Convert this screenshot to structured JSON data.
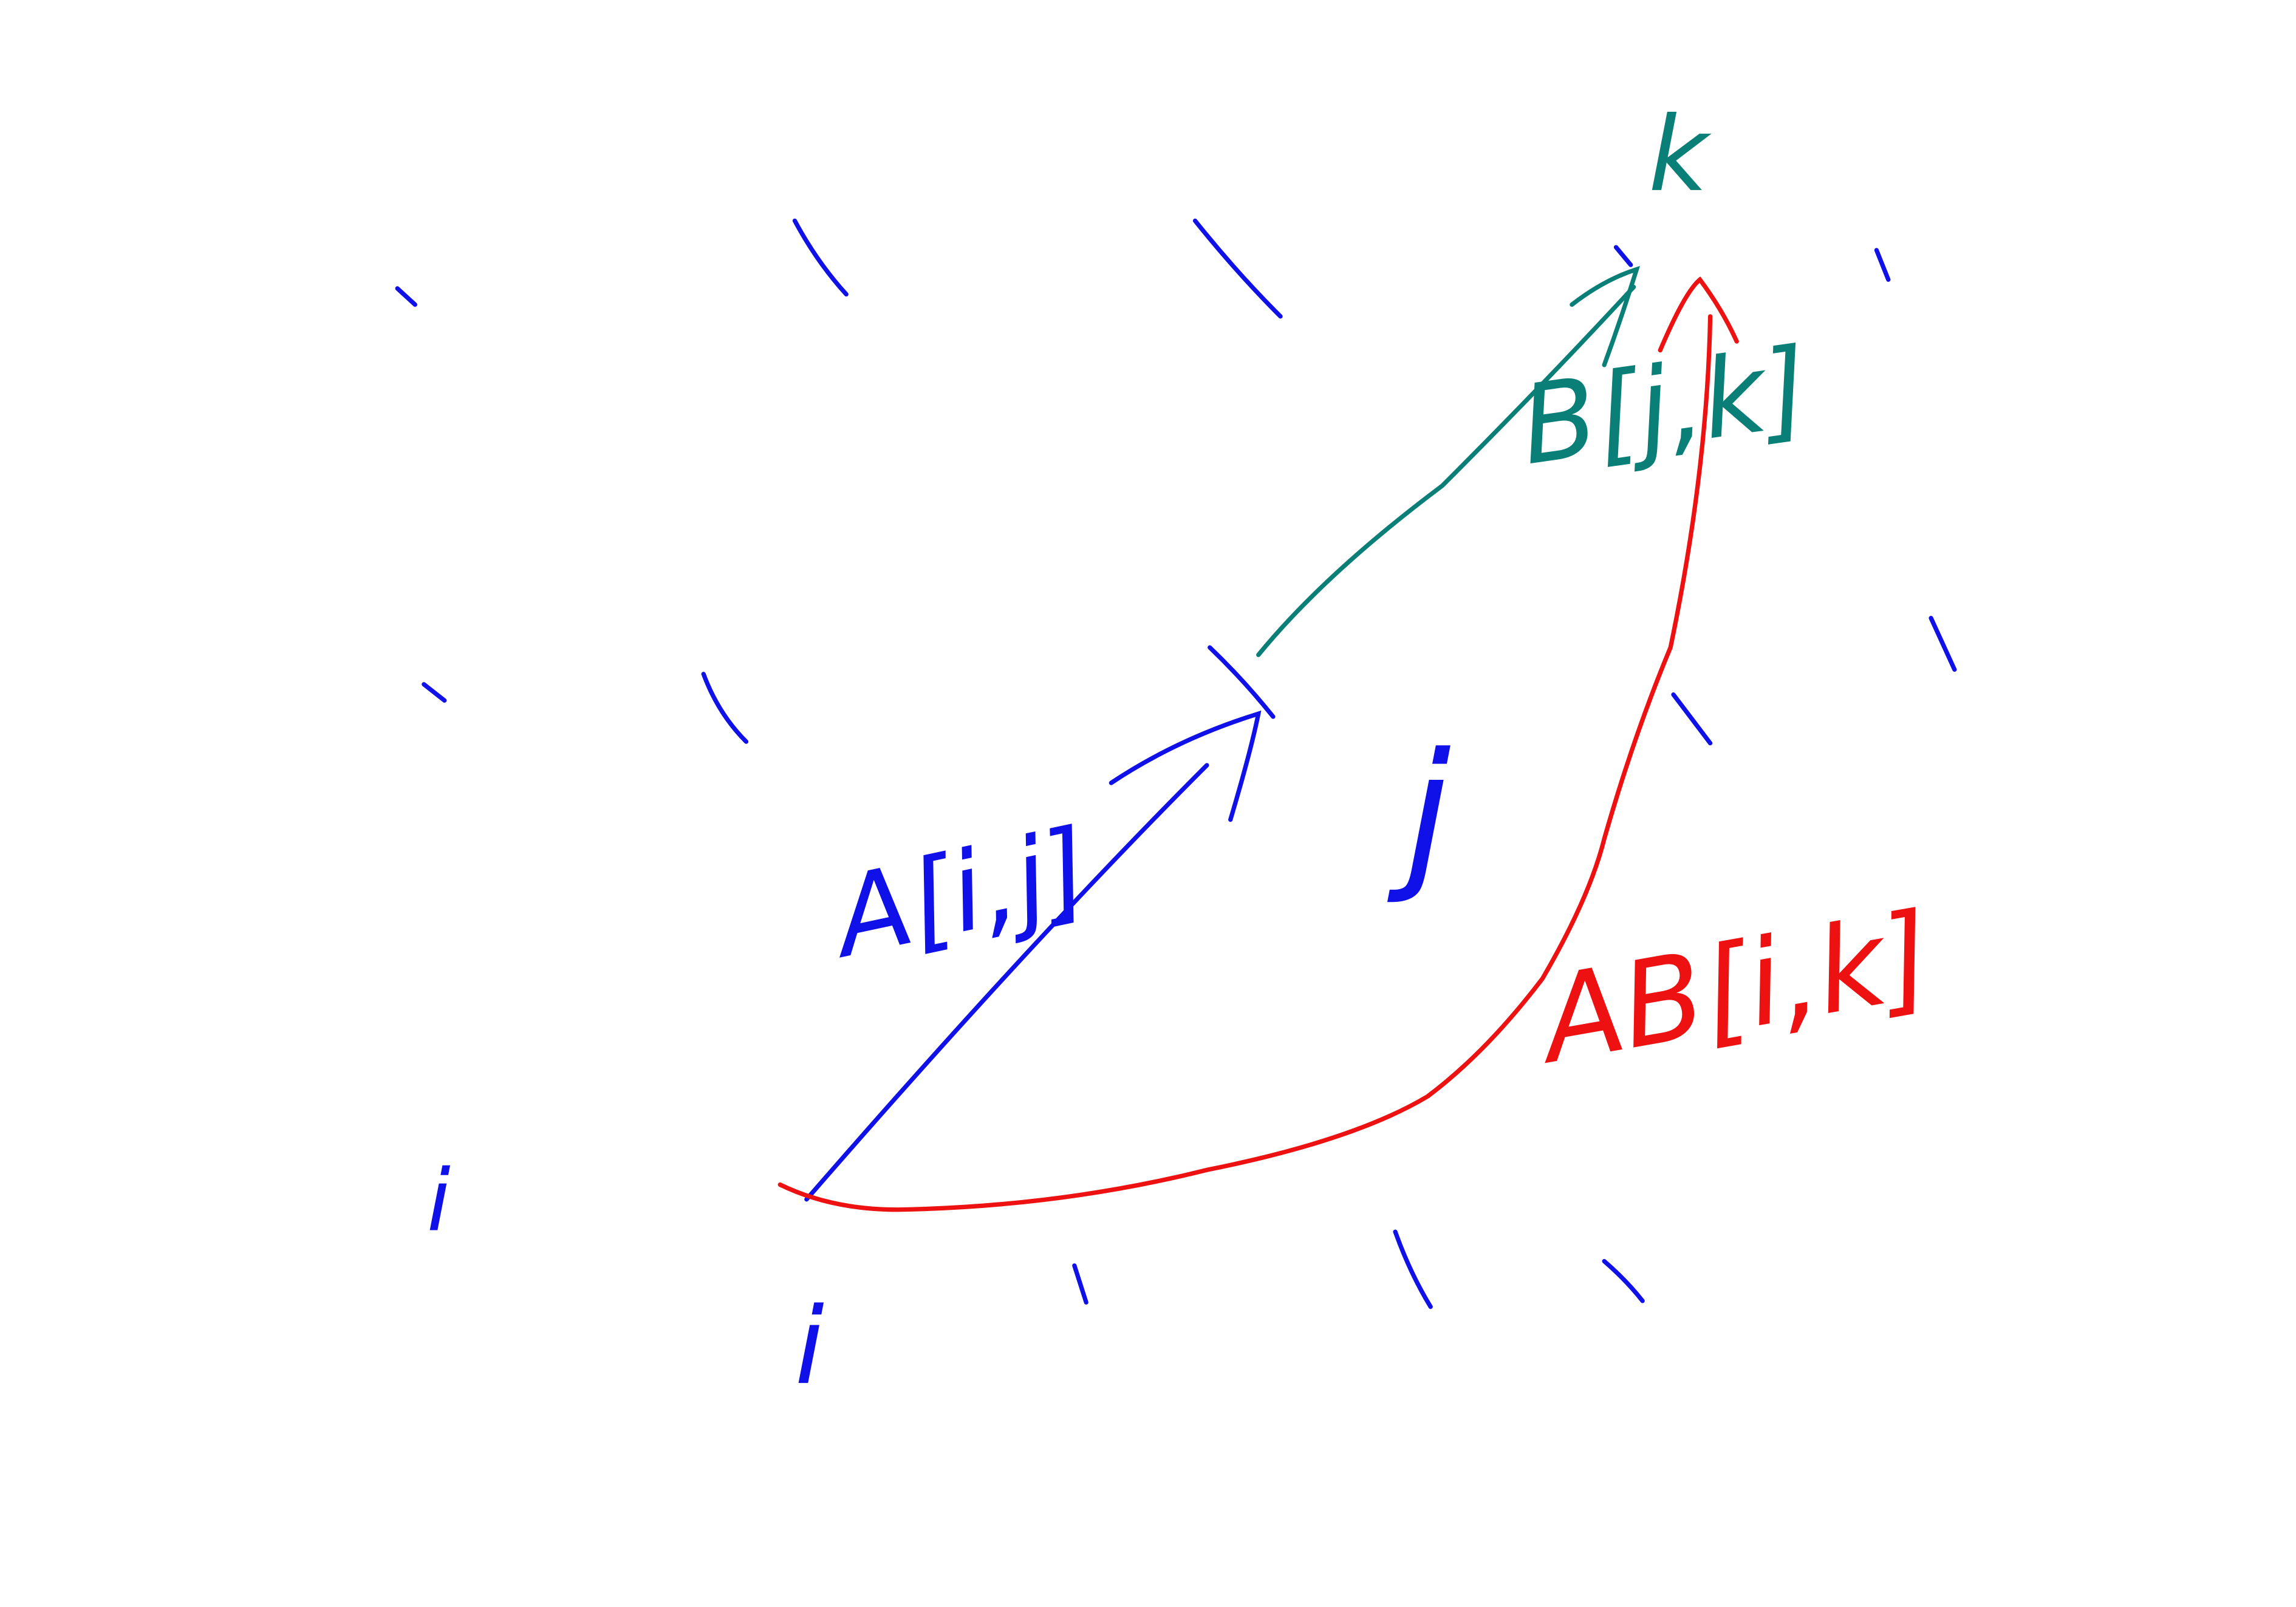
{
  "nodes": [
    {
      "label": "i"
    },
    {
      "label": "j"
    },
    {
      "label": "k"
    }
  ],
  "edges": [
    {
      "label": "A[i,j]"
    },
    {
      "label": "B[j,k]"
    },
    {
      "label": "AB[i,k]"
    }
  ]
}
